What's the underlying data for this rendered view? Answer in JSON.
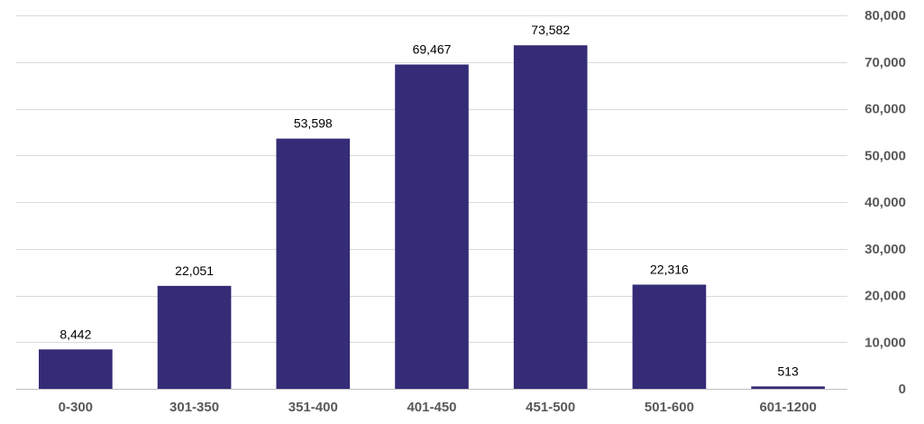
{
  "chart_data": {
    "type": "bar",
    "title": "",
    "xlabel": "",
    "ylabel": "",
    "categories": [
      "0-300",
      "301-350",
      "351-400",
      "401-450",
      "451-500",
      "501-600",
      "601-1200"
    ],
    "values": [
      8442,
      22051,
      53598,
      69467,
      73582,
      22316,
      513
    ],
    "value_labels": [
      "8,442",
      "22,051",
      "53,598",
      "69,467",
      "73,582",
      "22,316",
      "513"
    ],
    "ylim": [
      0,
      80000
    ],
    "yticks": [
      0,
      10000,
      20000,
      30000,
      40000,
      50000,
      60000,
      70000,
      80000
    ],
    "ytick_labels": [
      "0",
      "10,000",
      "20,000",
      "30,000",
      "40,000",
      "50,000",
      "60,000",
      "70,000",
      "80,000"
    ],
    "y_axis_side": "right",
    "grid": true,
    "legend": "none",
    "colors": {
      "bar": "#352c78",
      "grid": "#d9d9d9",
      "tick_text": "#595959",
      "label_text": "#000000"
    }
  }
}
